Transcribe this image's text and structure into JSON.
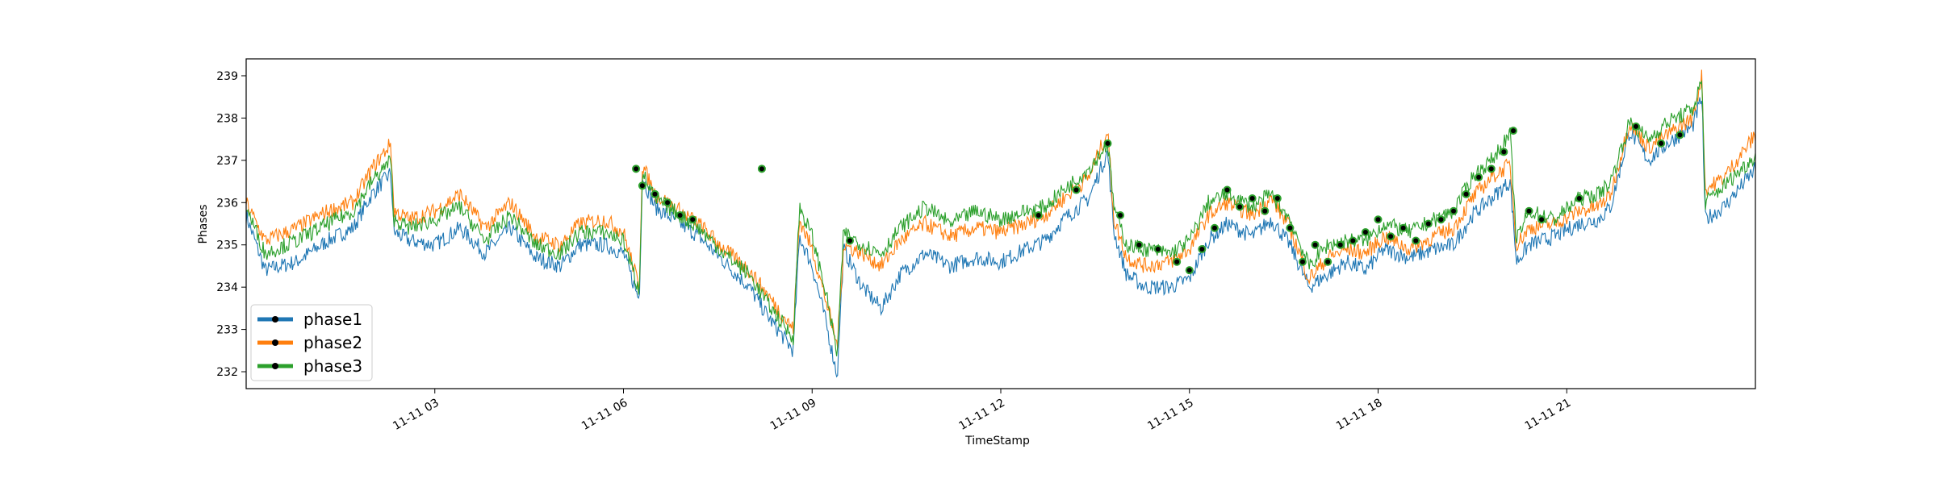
{
  "chart_data": {
    "type": "line",
    "xlabel": "TimeStamp",
    "ylabel": "Phases",
    "x_start": "2011-11-11 00:00",
    "x_end": "2011-11-12 00:00",
    "xlim_hours": [
      0,
      24
    ],
    "ylim": [
      231.6,
      239.4
    ],
    "x_ticks": [
      {
        "value": 3,
        "label": "11-11 03"
      },
      {
        "value": 6,
        "label": "11-11 06"
      },
      {
        "value": 9,
        "label": "11-11 09"
      },
      {
        "value": 12,
        "label": "11-11 12"
      },
      {
        "value": 15,
        "label": "11-11 15"
      },
      {
        "value": 18,
        "label": "11-11 18"
      },
      {
        "value": 21,
        "label": "11-11 21"
      }
    ],
    "y_ticks": [
      232,
      233,
      234,
      235,
      236,
      237,
      238,
      239
    ],
    "grid": false,
    "legend_position": "lower-left",
    "series": [
      {
        "name": "phase1",
        "color": "#1f77b4",
        "points": [
          [
            0,
            235.7
          ],
          [
            0.3,
            234.4
          ],
          [
            0.8,
            234.6
          ],
          [
            1.3,
            235.1
          ],
          [
            1.7,
            235.4
          ],
          [
            2.0,
            236.2
          ],
          [
            2.3,
            236.7
          ],
          [
            2.35,
            235.3
          ],
          [
            2.6,
            235.1
          ],
          [
            3.0,
            235.0
          ],
          [
            3.4,
            235.4
          ],
          [
            3.8,
            234.8
          ],
          [
            4.2,
            235.4
          ],
          [
            4.6,
            234.7
          ],
          [
            5.0,
            234.5
          ],
          [
            5.3,
            235.0
          ],
          [
            5.7,
            235.0
          ],
          [
            6.0,
            234.8
          ],
          [
            6.25,
            233.7
          ],
          [
            6.3,
            236.6
          ],
          [
            6.5,
            235.9
          ],
          [
            6.8,
            235.6
          ],
          [
            7.2,
            235.2
          ],
          [
            7.6,
            234.6
          ],
          [
            8.0,
            234.0
          ],
          [
            8.3,
            233.3
          ],
          [
            8.7,
            232.5
          ],
          [
            8.8,
            235.2
          ],
          [
            9.0,
            234.5
          ],
          [
            9.2,
            233.3
          ],
          [
            9.4,
            231.9
          ],
          [
            9.5,
            234.9
          ],
          [
            9.8,
            234.0
          ],
          [
            10.1,
            233.5
          ],
          [
            10.4,
            234.3
          ],
          [
            10.8,
            234.8
          ],
          [
            11.2,
            234.5
          ],
          [
            11.6,
            234.7
          ],
          [
            12.0,
            234.6
          ],
          [
            12.4,
            234.9
          ],
          [
            12.7,
            235.1
          ],
          [
            13.0,
            235.6
          ],
          [
            13.4,
            236.1
          ],
          [
            13.7,
            237.2
          ],
          [
            13.8,
            235.3
          ],
          [
            14.0,
            234.3
          ],
          [
            14.3,
            234.0
          ],
          [
            14.7,
            234.0
          ],
          [
            15.0,
            234.2
          ],
          [
            15.3,
            235.1
          ],
          [
            15.6,
            235.5
          ],
          [
            16.0,
            235.2
          ],
          [
            16.3,
            235.6
          ],
          [
            16.6,
            235.0
          ],
          [
            16.9,
            234.0
          ],
          [
            17.2,
            234.3
          ],
          [
            17.5,
            234.6
          ],
          [
            17.8,
            234.4
          ],
          [
            18.1,
            234.9
          ],
          [
            18.5,
            234.7
          ],
          [
            18.9,
            234.9
          ],
          [
            19.2,
            235.0
          ],
          [
            19.5,
            235.7
          ],
          [
            19.8,
            236.1
          ],
          [
            20.1,
            236.5
          ],
          [
            20.2,
            234.6
          ],
          [
            20.4,
            235.0
          ],
          [
            20.8,
            235.2
          ],
          [
            21.2,
            235.5
          ],
          [
            21.5,
            235.6
          ],
          [
            21.7,
            235.9
          ],
          [
            22.0,
            237.7
          ],
          [
            22.3,
            237.0
          ],
          [
            22.6,
            237.4
          ],
          [
            23.0,
            237.8
          ],
          [
            23.15,
            238.5
          ],
          [
            23.2,
            235.6
          ],
          [
            23.5,
            235.9
          ],
          [
            24.0,
            236.8
          ]
        ]
      },
      {
        "name": "phase2",
        "color": "#ff7f0e",
        "points": [
          [
            0,
            236.0
          ],
          [
            0.3,
            235.1
          ],
          [
            0.8,
            235.4
          ],
          [
            1.3,
            235.8
          ],
          [
            1.7,
            236.0
          ],
          [
            2.0,
            236.8
          ],
          [
            2.3,
            237.4
          ],
          [
            2.35,
            235.8
          ],
          [
            2.6,
            235.6
          ],
          [
            3.0,
            235.8
          ],
          [
            3.4,
            236.2
          ],
          [
            3.8,
            235.4
          ],
          [
            4.2,
            236.0
          ],
          [
            4.6,
            235.2
          ],
          [
            5.0,
            235.0
          ],
          [
            5.3,
            235.5
          ],
          [
            5.7,
            235.6
          ],
          [
            6.0,
            235.3
          ],
          [
            6.25,
            234.0
          ],
          [
            6.3,
            236.9
          ],
          [
            6.5,
            236.2
          ],
          [
            6.8,
            235.9
          ],
          [
            7.2,
            235.5
          ],
          [
            7.6,
            234.9
          ],
          [
            8.0,
            234.4
          ],
          [
            8.3,
            233.8
          ],
          [
            8.7,
            233.0
          ],
          [
            8.8,
            235.6
          ],
          [
            9.0,
            234.9
          ],
          [
            9.2,
            233.8
          ],
          [
            9.4,
            232.6
          ],
          [
            9.5,
            235.0
          ],
          [
            9.8,
            234.8
          ],
          [
            10.1,
            234.5
          ],
          [
            10.4,
            235.1
          ],
          [
            10.8,
            235.5
          ],
          [
            11.2,
            235.2
          ],
          [
            11.6,
            235.4
          ],
          [
            12.0,
            235.3
          ],
          [
            12.4,
            235.5
          ],
          [
            12.7,
            235.7
          ],
          [
            13.0,
            236.1
          ],
          [
            13.4,
            236.6
          ],
          [
            13.7,
            237.7
          ],
          [
            13.8,
            235.6
          ],
          [
            14.0,
            234.7
          ],
          [
            14.3,
            234.5
          ],
          [
            14.7,
            234.6
          ],
          [
            15.0,
            234.9
          ],
          [
            15.3,
            235.7
          ],
          [
            15.6,
            236.0
          ],
          [
            16.0,
            235.7
          ],
          [
            16.3,
            236.1
          ],
          [
            16.6,
            235.4
          ],
          [
            16.9,
            234.2
          ],
          [
            17.2,
            234.7
          ],
          [
            17.5,
            234.9
          ],
          [
            17.8,
            234.8
          ],
          [
            18.1,
            235.2
          ],
          [
            18.5,
            234.9
          ],
          [
            18.9,
            235.2
          ],
          [
            19.2,
            235.4
          ],
          [
            19.5,
            236.1
          ],
          [
            19.8,
            236.6
          ],
          [
            20.1,
            236.9
          ],
          [
            20.2,
            235.0
          ],
          [
            20.4,
            235.4
          ],
          [
            20.8,
            235.5
          ],
          [
            21.2,
            235.8
          ],
          [
            21.5,
            235.9
          ],
          [
            21.7,
            236.2
          ],
          [
            22.0,
            237.9
          ],
          [
            22.3,
            237.3
          ],
          [
            22.6,
            237.6
          ],
          [
            23.0,
            238.0
          ],
          [
            23.15,
            239.0
          ],
          [
            23.2,
            236.3
          ],
          [
            23.5,
            236.6
          ],
          [
            24.0,
            237.6
          ]
        ]
      },
      {
        "name": "phase3",
        "color": "#2ca02c",
        "points": [
          [
            0,
            235.9
          ],
          [
            0.3,
            234.8
          ],
          [
            0.8,
            235.1
          ],
          [
            1.3,
            235.5
          ],
          [
            1.7,
            235.8
          ],
          [
            2.0,
            236.5
          ],
          [
            2.3,
            237.0
          ],
          [
            2.35,
            235.6
          ],
          [
            2.6,
            235.4
          ],
          [
            3.0,
            235.6
          ],
          [
            3.4,
            235.9
          ],
          [
            3.8,
            235.1
          ],
          [
            4.2,
            235.7
          ],
          [
            4.6,
            235.0
          ],
          [
            5.0,
            234.8
          ],
          [
            5.3,
            235.3
          ],
          [
            5.7,
            235.3
          ],
          [
            6.0,
            235.1
          ],
          [
            6.25,
            233.9
          ],
          [
            6.3,
            236.7
          ],
          [
            6.5,
            236.1
          ],
          [
            6.8,
            235.8
          ],
          [
            7.2,
            235.4
          ],
          [
            7.6,
            234.8
          ],
          [
            8.0,
            234.3
          ],
          [
            8.3,
            233.6
          ],
          [
            8.7,
            232.8
          ],
          [
            8.8,
            235.9
          ],
          [
            9.0,
            235.2
          ],
          [
            9.2,
            234.0
          ],
          [
            9.4,
            232.4
          ],
          [
            9.5,
            235.3
          ],
          [
            9.8,
            235.0
          ],
          [
            10.1,
            234.8
          ],
          [
            10.4,
            235.4
          ],
          [
            10.8,
            235.9
          ],
          [
            11.2,
            235.5
          ],
          [
            11.6,
            235.8
          ],
          [
            12.0,
            235.6
          ],
          [
            12.4,
            235.8
          ],
          [
            12.7,
            235.9
          ],
          [
            13.0,
            236.3
          ],
          [
            13.4,
            236.8
          ],
          [
            13.7,
            237.4
          ],
          [
            13.8,
            235.9
          ],
          [
            14.0,
            235.0
          ],
          [
            14.3,
            234.9
          ],
          [
            14.7,
            234.8
          ],
          [
            15.0,
            235.1
          ],
          [
            15.3,
            236.0
          ],
          [
            15.6,
            236.2
          ],
          [
            16.0,
            235.9
          ],
          [
            16.3,
            236.2
          ],
          [
            16.6,
            235.6
          ],
          [
            16.9,
            234.5
          ],
          [
            17.2,
            235.0
          ],
          [
            17.5,
            235.1
          ],
          [
            17.8,
            235.1
          ],
          [
            18.1,
            235.5
          ],
          [
            18.5,
            235.3
          ],
          [
            18.9,
            235.6
          ],
          [
            19.2,
            235.8
          ],
          [
            19.5,
            236.6
          ],
          [
            19.8,
            237.0
          ],
          [
            20.1,
            237.6
          ],
          [
            20.2,
            235.1
          ],
          [
            20.4,
            235.8
          ],
          [
            20.8,
            235.6
          ],
          [
            21.2,
            236.1
          ],
          [
            21.5,
            236.2
          ],
          [
            21.7,
            236.5
          ],
          [
            22.0,
            237.9
          ],
          [
            22.3,
            237.5
          ],
          [
            22.6,
            237.9
          ],
          [
            23.0,
            238.2
          ],
          [
            23.15,
            238.9
          ],
          [
            23.2,
            236.0
          ],
          [
            23.5,
            236.4
          ],
          [
            24.0,
            237.1
          ]
        ]
      }
    ],
    "markers": [
      [
        6.2,
        236.8
      ],
      [
        6.3,
        236.4
      ],
      [
        6.5,
        236.2
      ],
      [
        6.7,
        236.0
      ],
      [
        6.9,
        235.7
      ],
      [
        7.1,
        235.6
      ],
      [
        8.2,
        236.8
      ],
      [
        9.6,
        235.1
      ],
      [
        12.6,
        235.7
      ],
      [
        13.2,
        236.3
      ],
      [
        13.7,
        237.4
      ],
      [
        13.9,
        235.7
      ],
      [
        14.2,
        235.0
      ],
      [
        14.5,
        234.9
      ],
      [
        14.8,
        234.6
      ],
      [
        15.0,
        234.4
      ],
      [
        15.2,
        234.9
      ],
      [
        15.4,
        235.4
      ],
      [
        15.6,
        236.3
      ],
      [
        15.8,
        235.9
      ],
      [
        16.0,
        236.1
      ],
      [
        16.2,
        235.8
      ],
      [
        16.4,
        236.1
      ],
      [
        16.6,
        235.4
      ],
      [
        16.8,
        234.6
      ],
      [
        17.0,
        235.0
      ],
      [
        17.2,
        234.6
      ],
      [
        17.4,
        235.0
      ],
      [
        17.6,
        235.1
      ],
      [
        17.8,
        235.3
      ],
      [
        18.0,
        235.6
      ],
      [
        18.2,
        235.2
      ],
      [
        18.4,
        235.4
      ],
      [
        18.6,
        235.1
      ],
      [
        18.8,
        235.5
      ],
      [
        19.0,
        235.6
      ],
      [
        19.2,
        235.8
      ],
      [
        19.4,
        236.2
      ],
      [
        19.6,
        236.6
      ],
      [
        19.8,
        236.8
      ],
      [
        20.0,
        237.2
      ],
      [
        20.15,
        237.7
      ],
      [
        20.4,
        235.8
      ],
      [
        20.6,
        235.6
      ],
      [
        21.2,
        236.1
      ],
      [
        22.1,
        237.8
      ],
      [
        22.5,
        237.4
      ],
      [
        22.8,
        237.6
      ]
    ],
    "marker_color": "#000000"
  }
}
